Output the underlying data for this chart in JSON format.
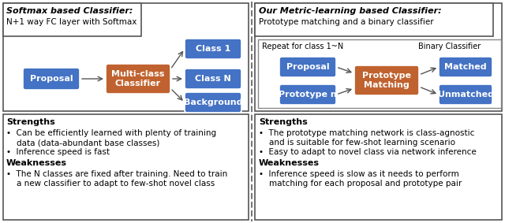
{
  "background_color": "#ffffff",
  "blue_color": "#4472C4",
  "orange_color": "#C0622F",
  "white": "#ffffff",
  "border_color": "#555555",
  "inner_border_color": "#888888",
  "left_title_italic_bold": "Softmax based Classifier:",
  "left_title_normal": "N+1 way FC layer with Softmax",
  "right_title_italic_bold": "Our Metric-learning based Classifier:",
  "right_title_normal": "Prototype matching and a binary classifier",
  "inner_label_left": "Repeat for class 1~N",
  "inner_label_right": "Binary Classifier",
  "left_strengths_title": "Strengths",
  "left_strengths": [
    "Can be efficiently learned with plenty of training\n     data (data-abundant base classes)",
    "Inference speed is fast"
  ],
  "left_weaknesses_title": "Weaknesses",
  "left_weaknesses": [
    "The N classes are fixed after training. Need to train\n     a new classifier to adapt to few-shot novel class"
  ],
  "right_strengths_title": "Strengths",
  "right_strengths": [
    "The prototype matching network is class-agnostic\n     and is suitable for few-shot learning scenario",
    "Easy to adapt to novel class via network inference"
  ],
  "right_weaknesses_title": "Weaknesses",
  "right_weaknesses": [
    "Inference speed is slow as it needs to perform\n     matching for each proposal and prototype pair"
  ]
}
